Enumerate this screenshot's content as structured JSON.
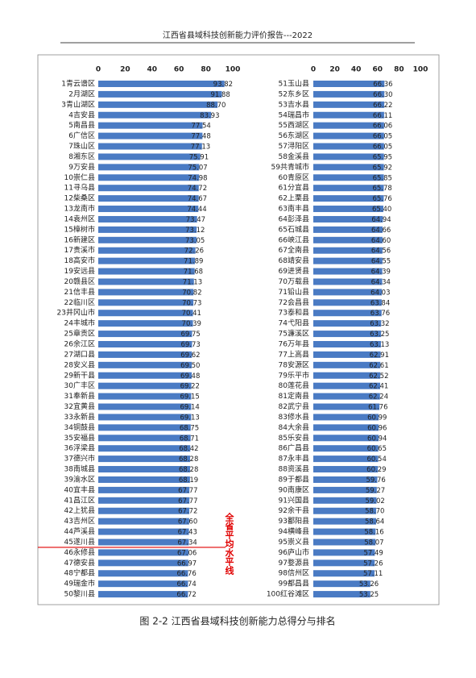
{
  "header": {
    "title": "江西省县域科技创新能力评价报告---2022"
  },
  "caption": "图 2-2 江西省县域科技创新能力总得分与排名",
  "chart_data": [
    {
      "type": "bar",
      "orientation": "horizontal",
      "color": "#4a7bc4",
      "xlim": [
        0,
        100
      ],
      "xticks": [
        0,
        20,
        40,
        60,
        80,
        100
      ],
      "annotation": "全省平均水平线",
      "categories": [
        "1青云谱区",
        "2月湖区",
        "3青山湖区",
        "4吉安县",
        "5南昌县",
        "6广信区",
        "7珠山区",
        "8湘东区",
        "9万安县",
        "10崇仁县",
        "11寻乌县",
        "12柴桑区",
        "13龙南市",
        "14袁州区",
        "15樟树市",
        "16新建区",
        "17贵溪市",
        "18高安市",
        "19安远县",
        "20赣县区",
        "21信丰县",
        "22临川区",
        "23井冈山市",
        "24丰城市",
        "25章贡区",
        "26余江区",
        "27湖口县",
        "28安义县",
        "29新干县",
        "30广丰区",
        "31奉新县",
        "32宜黄县",
        "33永新县",
        "34铜鼓县",
        "35安福县",
        "36浮梁县",
        "37德兴市",
        "38南城县",
        "39渝水区",
        "40宜丰县",
        "41昌江区",
        "42上犹县",
        "43吉州区",
        "44芦溪县",
        "45遂川县",
        "46永修县",
        "47德安县",
        "48宁都县",
        "49瑞金市",
        "50黎川县"
      ],
      "values": [
        93.82,
        91.88,
        88.7,
        83.93,
        77.54,
        77.48,
        77.13,
        75.91,
        75.07,
        74.98,
        74.72,
        74.67,
        74.44,
        73.47,
        73.12,
        73.05,
        72.26,
        71.89,
        71.68,
        71.13,
        70.82,
        70.73,
        70.41,
        70.39,
        69.75,
        69.73,
        69.62,
        69.5,
        69.48,
        69.22,
        69.15,
        69.14,
        69.13,
        68.75,
        68.71,
        68.42,
        68.28,
        68.28,
        68.19,
        67.77,
        67.77,
        67.72,
        67.6,
        67.43,
        67.34,
        67.06,
        66.97,
        66.76,
        66.74,
        66.72
      ],
      "value_labels": [
        "93.82",
        "91.88",
        "88.70",
        "83.93",
        "77.54",
        "77.48",
        "77.13",
        "75.91",
        "75.07",
        "74.98",
        "74.72",
        "74.67",
        "74.44",
        "73.47",
        "73.12",
        "73.05",
        "72.26",
        "71.89",
        "71.68",
        "71.13",
        "70.82",
        "70.73",
        "70.41",
        "70.39",
        "69.75",
        "69.73",
        "69.62",
        "69.50",
        "69.48",
        "69.22",
        "69.15",
        "69.14",
        "69.13",
        "68.75",
        "68.71",
        "68.42",
        "68.28",
        "68.28",
        "68.19",
        "67.77",
        "67.77",
        "67.72",
        "67.60",
        "67.43",
        "67.34",
        "67.06",
        "66.97",
        "66.76",
        "66.74",
        "66.72"
      ]
    },
    {
      "type": "bar",
      "orientation": "horizontal",
      "color": "#4a7bc4",
      "xlim": [
        0,
        100
      ],
      "xticks": [
        0,
        20,
        40,
        60,
        80,
        100
      ],
      "categories": [
        "51玉山县",
        "52东乡区",
        "53吉水县",
        "54瑞昌市",
        "55西湖区",
        "56东湖区",
        "57浔阳区",
        "58金溪县",
        "59共青城市",
        "60青原区",
        "61分宜县",
        "62上栗县",
        "63南丰县",
        "64彭泽县",
        "65石城县",
        "66峡江县",
        "67全南县",
        "68靖安县",
        "69进贤县",
        "70万载县",
        "71铅山县",
        "72会昌县",
        "73泰和县",
        "74弋阳县",
        "75濂溪区",
        "76万年县",
        "77上高县",
        "78安源区",
        "79乐平市",
        "80莲花县",
        "81定南县",
        "82武宁县",
        "83修水县",
        "84大余县",
        "85乐安县",
        "86广昌县",
        "87永丰县",
        "88资溪县",
        "89于都县",
        "90南康区",
        "91兴国县",
        "92余干县",
        "93鄱阳县",
        "94横峰县",
        "95崇义县",
        "96庐山市",
        "97婺源县",
        "98信州区",
        "99都昌县",
        "100红谷滩区"
      ],
      "values": [
        66.36,
        66.3,
        66.22,
        66.11,
        66.06,
        66.05,
        66.05,
        65.95,
        65.92,
        65.85,
        65.78,
        65.76,
        65.4,
        64.94,
        64.66,
        64.6,
        64.56,
        64.55,
        64.39,
        64.34,
        64.03,
        63.84,
        63.76,
        63.32,
        63.25,
        63.13,
        62.91,
        62.61,
        62.52,
        62.41,
        62.24,
        61.76,
        60.99,
        60.96,
        60.94,
        60.65,
        60.54,
        60.29,
        59.76,
        59.27,
        59.02,
        58.7,
        58.64,
        58.16,
        58.07,
        57.49,
        57.26,
        57.11,
        53.26,
        53.25
      ],
      "value_labels": [
        "66.36",
        "66.30",
        "66.22",
        "66.11",
        "66.06",
        "66.05",
        "66.05",
        "65.95",
        "65.92",
        "65.85",
        "65.78",
        "65.76",
        "65.40",
        "64.94",
        "64.66",
        "64.60",
        "64.56",
        "64.55",
        "64.39",
        "64.34",
        "64.03",
        "63.84",
        "63.76",
        "63.32",
        "63.25",
        "63.13",
        "62.91",
        "62.61",
        "62.52",
        "62.41",
        "62.24",
        "61.76",
        "60.99",
        "60.96",
        "60.94",
        "60.65",
        "60.54",
        "60.29",
        "59.76",
        "59.27",
        "59.02",
        "58.70",
        "58.64",
        "58.16",
        "58.07",
        "57.49",
        "57.26",
        "57.11",
        "53.26",
        "53.25"
      ]
    }
  ]
}
